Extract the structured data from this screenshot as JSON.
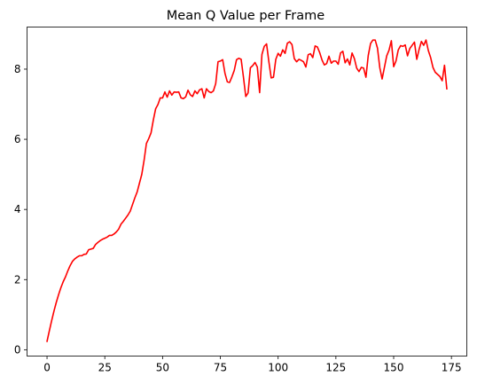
{
  "chart_data": {
    "type": "line",
    "title": "Mean Q Value per Frame",
    "xlabel": "",
    "ylabel": "",
    "xlim": [
      -8.65,
      181.65
    ],
    "ylim": [
      -0.18,
      9.2
    ],
    "xticks": [
      0,
      25,
      50,
      75,
      100,
      125,
      150,
      175
    ],
    "yticks": [
      0,
      2,
      4,
      6,
      8
    ],
    "grid": false,
    "line_color": "#ff0000",
    "series": [
      {
        "x": [
          0,
          1,
          2,
          3,
          4,
          5,
          6,
          7,
          8,
          9,
          10,
          11,
          12,
          13,
          14,
          15,
          16,
          17,
          18,
          19,
          20,
          21,
          22,
          23,
          24,
          25,
          26,
          27,
          28,
          29,
          30,
          31,
          32,
          33,
          34,
          35,
          36,
          37,
          38,
          39,
          40,
          41,
          42,
          43,
          44,
          45,
          46,
          47,
          48,
          49,
          50,
          51,
          52,
          53,
          54,
          55,
          56,
          57,
          58,
          59,
          60,
          61,
          62,
          63,
          64,
          65,
          66,
          67,
          68,
          69,
          70,
          71,
          72,
          73,
          74,
          75,
          76,
          77,
          78,
          79,
          80,
          81,
          82,
          83,
          84,
          85,
          86,
          87,
          88,
          89,
          90,
          91,
          92,
          93,
          94,
          95,
          96,
          97,
          98,
          99,
          100,
          101,
          102,
          103,
          104,
          105,
          106,
          107,
          108,
          109,
          110,
          111,
          112,
          113,
          114,
          115,
          116,
          117,
          118,
          119,
          120,
          121,
          122,
          123,
          124,
          125,
          126,
          127,
          128,
          129,
          130,
          131,
          132,
          133,
          134,
          135,
          136,
          137,
          138,
          139,
          140,
          141,
          142,
          143,
          144,
          145,
          146,
          147,
          148,
          149,
          150,
          151,
          152,
          153,
          154,
          155,
          156,
          157,
          158,
          159,
          160,
          161,
          162,
          163,
          164,
          165,
          166,
          167,
          168,
          169,
          170,
          171,
          172,
          173
        ],
        "values": [
          0.24,
          0.54,
          0.83,
          1.1,
          1.35,
          1.57,
          1.77,
          1.94,
          2.08,
          2.25,
          2.4,
          2.52,
          2.59,
          2.64,
          2.68,
          2.68,
          2.72,
          2.73,
          2.85,
          2.87,
          2.89,
          3.0,
          3.06,
          3.11,
          3.15,
          3.18,
          3.21,
          3.26,
          3.26,
          3.3,
          3.36,
          3.44,
          3.58,
          3.66,
          3.75,
          3.84,
          3.95,
          4.14,
          4.33,
          4.5,
          4.75,
          5.0,
          5.4,
          5.88,
          6.02,
          6.18,
          6.55,
          6.87,
          6.99,
          7.18,
          7.18,
          7.35,
          7.2,
          7.38,
          7.26,
          7.35,
          7.34,
          7.35,
          7.18,
          7.16,
          7.21,
          7.4,
          7.27,
          7.22,
          7.38,
          7.3,
          7.41,
          7.44,
          7.18,
          7.44,
          7.36,
          7.33,
          7.38,
          7.59,
          8.21,
          8.23,
          8.27,
          7.88,
          7.64,
          7.62,
          7.78,
          7.96,
          8.27,
          8.31,
          8.28,
          7.77,
          7.22,
          7.32,
          8.04,
          8.1,
          8.19,
          8.06,
          7.33,
          8.42,
          8.65,
          8.72,
          8.21,
          7.75,
          7.77,
          8.28,
          8.45,
          8.37,
          8.55,
          8.45,
          8.74,
          8.78,
          8.7,
          8.3,
          8.21,
          8.28,
          8.25,
          8.21,
          8.06,
          8.41,
          8.44,
          8.33,
          8.66,
          8.63,
          8.47,
          8.26,
          8.12,
          8.16,
          8.37,
          8.17,
          8.23,
          8.23,
          8.14,
          8.46,
          8.51,
          8.18,
          8.29,
          8.12,
          8.46,
          8.3,
          8.03,
          7.93,
          8.05,
          8.03,
          7.77,
          8.39,
          8.73,
          8.83,
          8.83,
          8.6,
          8.04,
          7.72,
          8.05,
          8.38,
          8.54,
          8.81,
          8.07,
          8.23,
          8.55,
          8.67,
          8.65,
          8.69,
          8.38,
          8.59,
          8.68,
          8.77,
          8.28,
          8.56,
          8.79,
          8.68,
          8.83,
          8.53,
          8.33,
          8.05,
          7.91,
          7.85,
          7.79,
          7.67,
          8.11,
          7.44
        ]
      }
    ]
  }
}
